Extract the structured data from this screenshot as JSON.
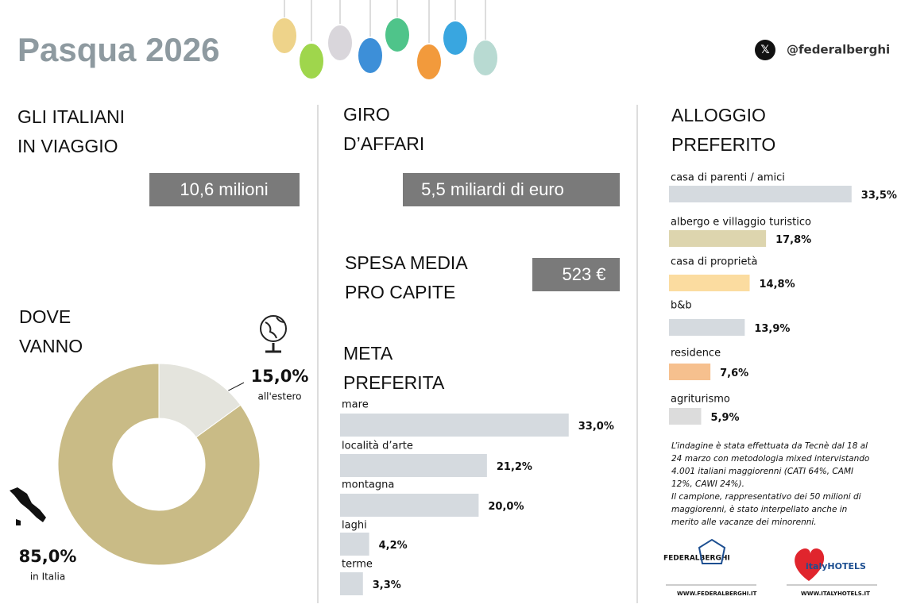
{
  "header": {
    "title": "Pasqua 2026",
    "handle": "@federalberghi"
  },
  "travelers": {
    "title": [
      "GLI ITALIANI",
      "IN VIAGGIO"
    ],
    "value": "10,6 milioni"
  },
  "turnover": {
    "title": [
      "GIRO",
      "D’AFFARI"
    ],
    "value": "5,5 miliardi di euro"
  },
  "spending": {
    "title": [
      "SPESA MEDIA",
      "PRO CAPITE"
    ],
    "value": "523 €"
  },
  "chart_data": [
    {
      "type": "donut",
      "title": [
        "DOVE",
        "VANNO"
      ],
      "categories": [
        "all'estero",
        "in Italia"
      ],
      "values": [
        15.0,
        85.0
      ],
      "value_labels": [
        "15,0%",
        "85,0%"
      ],
      "colors": [
        "#e4e4dd",
        "#c9bb86"
      ]
    },
    {
      "type": "hbar",
      "title": [
        "META",
        "PREFERITA"
      ],
      "categories": [
        "mare",
        "località d’arte",
        "montagna",
        "laghi",
        "terme"
      ],
      "values": [
        33.0,
        21.2,
        20.0,
        4.2,
        3.3
      ],
      "value_labels": [
        "33,0%",
        "21,2%",
        "20,0%",
        "4,2%",
        "3,3%"
      ],
      "color": "#d5dadf"
    },
    {
      "type": "hbar",
      "title": [
        "ALLOGGIO",
        "PREFERITO"
      ],
      "categories": [
        "casa di parenti / amici",
        "albergo e villaggio turistico",
        "casa di proprietà",
        "b&b",
        "residence",
        "agriturismo"
      ],
      "values": [
        33.5,
        17.8,
        14.8,
        13.9,
        7.6,
        5.9
      ],
      "value_labels": [
        "33,5%",
        "17,8%",
        "14,8%",
        "13,9%",
        "7,6%",
        "5,9%"
      ],
      "colors": [
        "#d5dadf",
        "#ddd5ae",
        "#fbdca0",
        "#d5dadf",
        "#f6c08e",
        "#dcdcdc"
      ]
    }
  ],
  "note": [
    "L’indagine è stata effettuata da Tecnè dal 18 al",
    "24 marzo con metodologia mixed intervistando",
    "4.001 italiani maggiorenni (CATI 64%, CAMI",
    "12%, CAWI 24%).",
    "Il campione, rappresentativo dei 50 milioni di",
    "maggiorenni, è stato interpellato anche in",
    "merito alle vacanze dei minorenni."
  ],
  "logos": {
    "federalberghi": "FEDERALBERGHI",
    "federalberghi_url": "WWW.FEDERALBERGHI.IT",
    "italyhotels": "italyHOTELS",
    "italyhotels_url": "WWW.ITALYHOTELS.IT"
  }
}
